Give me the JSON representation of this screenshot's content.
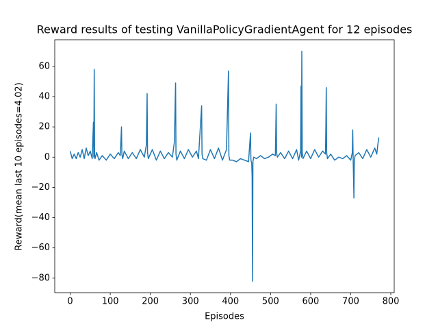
{
  "chart_data": {
    "type": "line",
    "title": "Reward results of testing VanillaPolicyGradientAgent for 12 episodes",
    "x_label": "Episodes",
    "y_label": "Reward(mean last 10 episodes=4.02)",
    "x": [
      0,
      5,
      10,
      15,
      20,
      25,
      30,
      35,
      40,
      45,
      50,
      55,
      58,
      59,
      60,
      61,
      62,
      66,
      72,
      80,
      90,
      100,
      110,
      120,
      125,
      128,
      129,
      131,
      135,
      145,
      155,
      165,
      175,
      185,
      190,
      192,
      193,
      195,
      205,
      215,
      225,
      235,
      245,
      255,
      260,
      263,
      264,
      266,
      275,
      285,
      295,
      305,
      315,
      320,
      328,
      329,
      331,
      340,
      350,
      360,
      370,
      380,
      390,
      395,
      396,
      398,
      405,
      415,
      425,
      435,
      445,
      450,
      451,
      453,
      454,
      455,
      456,
      458,
      465,
      475,
      485,
      495,
      505,
      512,
      513,
      514,
      515,
      517,
      525,
      535,
      545,
      555,
      565,
      570,
      575,
      576,
      577,
      578,
      579,
      581,
      590,
      600,
      610,
      620,
      630,
      637,
      638,
      639,
      640,
      642,
      650,
      660,
      670,
      680,
      690,
      700,
      704,
      705,
      706,
      708,
      709,
      711,
      720,
      730,
      740,
      750,
      760,
      765,
      768,
      770
    ],
    "series": [
      {
        "color": "#1f77b4",
        "values": [
          4,
          -1,
          2,
          -1,
          3,
          0,
          5,
          -1,
          6,
          1,
          4,
          -1,
          23,
          0,
          58,
          2,
          -1,
          3,
          -2,
          1,
          -2,
          2,
          -1,
          3,
          1,
          20,
          2,
          -1,
          4,
          -1,
          3,
          -1,
          5,
          0,
          8,
          42,
          3,
          -1,
          5,
          -2,
          4,
          -1,
          3,
          0,
          10,
          49,
          2,
          -2,
          4,
          -1,
          5,
          0,
          4,
          -1,
          34,
          2,
          -1,
          -2,
          5,
          -1,
          6,
          -2,
          5,
          57,
          1,
          -2,
          -2,
          -3,
          -1,
          -2,
          -3,
          16,
          -2,
          -4,
          -13,
          -82,
          -3,
          0,
          -1,
          1,
          -1,
          0,
          2,
          1,
          17,
          35,
          3,
          0,
          3,
          -1,
          4,
          -1,
          5,
          -2,
          4,
          47,
          0,
          70,
          3,
          -1,
          4,
          -1,
          5,
          0,
          4,
          2,
          20,
          46,
          3,
          -1,
          2,
          -2,
          0,
          -1,
          1,
          -2,
          3,
          18,
          0,
          -27,
          -2,
          1,
          3,
          -1,
          5,
          0,
          6,
          2,
          9,
          13
        ]
      }
    ],
    "xlim": [
      -38.5,
      808.5
    ],
    "ylim": [
      -89.6,
      77.6
    ],
    "xticks": [
      0,
      100,
      200,
      300,
      400,
      500,
      600,
      700,
      800
    ],
    "yticks": [
      {
        "value": -80,
        "label": "−80"
      },
      {
        "value": -60,
        "label": "−60"
      },
      {
        "value": -40,
        "label": "−40"
      },
      {
        "value": -20,
        "label": "−20"
      },
      0,
      20,
      40,
      60
    ]
  }
}
